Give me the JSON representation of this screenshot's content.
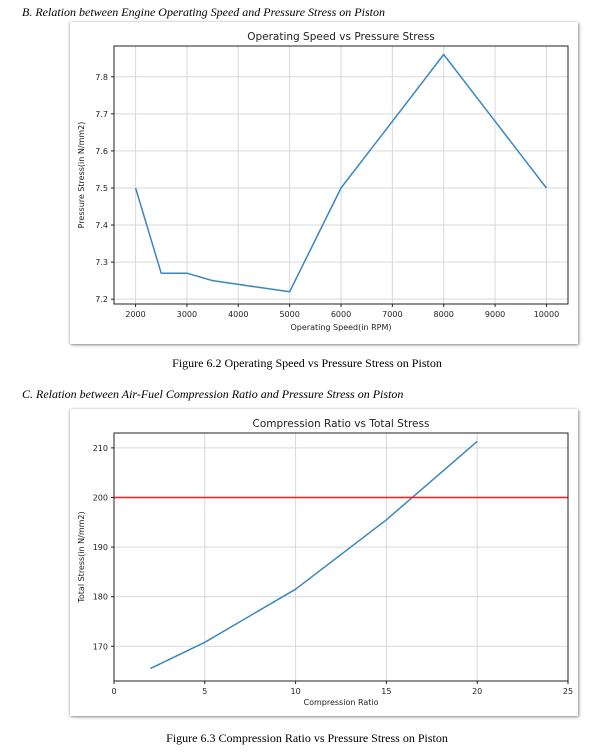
{
  "section_b": {
    "heading": "B.   Relation between Engine Operating Speed and Pressure Stress on Piston"
  },
  "section_c": {
    "heading": "C.   Relation between Air-Fuel Compression Ratio and Pressure Stress on Piston"
  },
  "figure_6_2": {
    "caption": "Figure 6.2 Operating Speed vs Pressure Stress on Piston"
  },
  "figure_6_3": {
    "caption": "Figure 6.3 Compression Ratio vs Pressure Stress on Piston"
  },
  "chart_data": [
    {
      "type": "line",
      "title": "Operating Speed vs Pressure Stress",
      "xlabel": "Operating Speed(in RPM)",
      "ylabel": "Pressure Stress(in N/mm2)",
      "x_ticks": [
        2000,
        3000,
        4000,
        5000,
        6000,
        7000,
        8000,
        9000,
        10000
      ],
      "y_ticks": [
        7.2,
        7.3,
        7.4,
        7.5,
        7.6,
        7.7,
        7.8
      ],
      "xlim": [
        1580,
        10420
      ],
      "ylim": [
        7.187,
        7.883
      ],
      "grid": true,
      "series": [
        {
          "color": "#3a87c0",
          "x": [
            2000,
            2500,
            3000,
            3500,
            4000,
            5000,
            6000,
            7000,
            8000,
            9000,
            10000
          ],
          "y": [
            7.5,
            7.27,
            7.27,
            7.25,
            7.24,
            7.22,
            7.5,
            7.68,
            7.86,
            7.68,
            7.5
          ]
        }
      ]
    },
    {
      "type": "line",
      "title": "Compression Ratio vs Total Stress",
      "xlabel": "Compression Ratio",
      "ylabel": "Total Stress(in N/mm2)",
      "x_ticks": [
        0,
        5,
        10,
        15,
        20,
        25
      ],
      "y_ticks": [
        170,
        180,
        190,
        200,
        210
      ],
      "xlim": [
        0,
        25
      ],
      "ylim": [
        163,
        213
      ],
      "grid": true,
      "series": [
        {
          "color": "#3a87c0",
          "x": [
            2,
            5,
            10,
            15,
            20
          ],
          "y": [
            165.5,
            170.8,
            181.5,
            195.5,
            211.3
          ]
        },
        {
          "color": "#ff1a1a",
          "x": [
            0,
            25
          ],
          "y": [
            200,
            200
          ]
        }
      ]
    }
  ]
}
